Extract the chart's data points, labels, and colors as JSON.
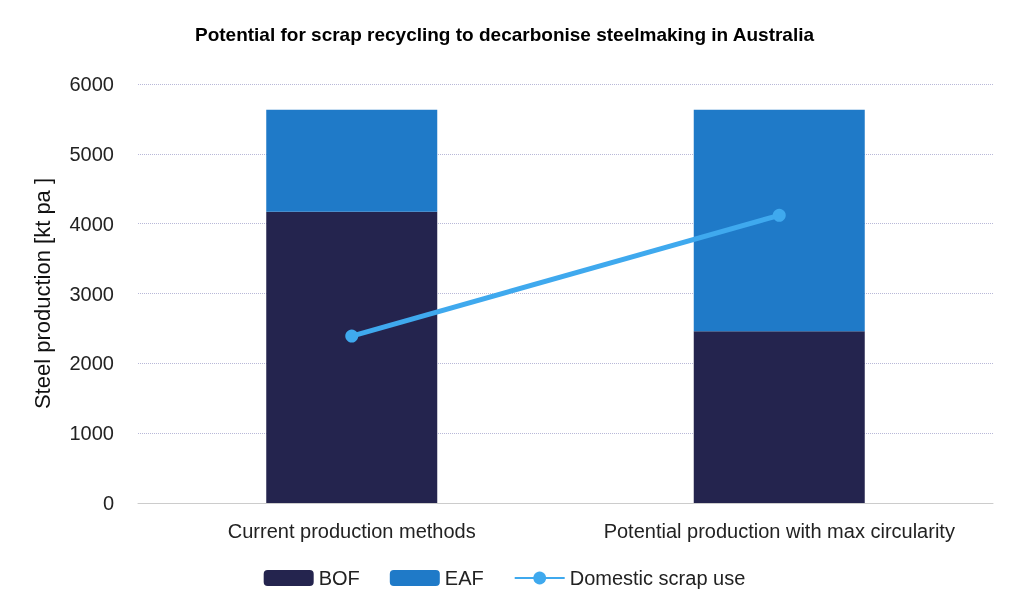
{
  "chart_data": {
    "type": "bar",
    "title": "Potential for scrap recycling to decarbonise steelmaking in Australia",
    "ylabel": "Steel production [kt pa ]",
    "categories": [
      "Current production methods",
      "Potential production with max circularity"
    ],
    "stacked": true,
    "series": [
      {
        "name": "BOF",
        "color": "#24244e",
        "values": [
          4170,
          2460
        ]
      },
      {
        "name": "EAF",
        "color": "#1f7ac8",
        "values": [
          1460,
          3170
        ]
      },
      {
        "name": "Domestic scrap use",
        "type": "line",
        "color": "#3fa9ee",
        "values": [
          2390,
          4120
        ],
        "marker": "circle"
      }
    ],
    "ylim": [
      0,
      6000
    ],
    "yticks": [
      0,
      1000,
      2000,
      3000,
      4000,
      5000,
      6000
    ],
    "grid": "y",
    "legend": "bottom"
  }
}
